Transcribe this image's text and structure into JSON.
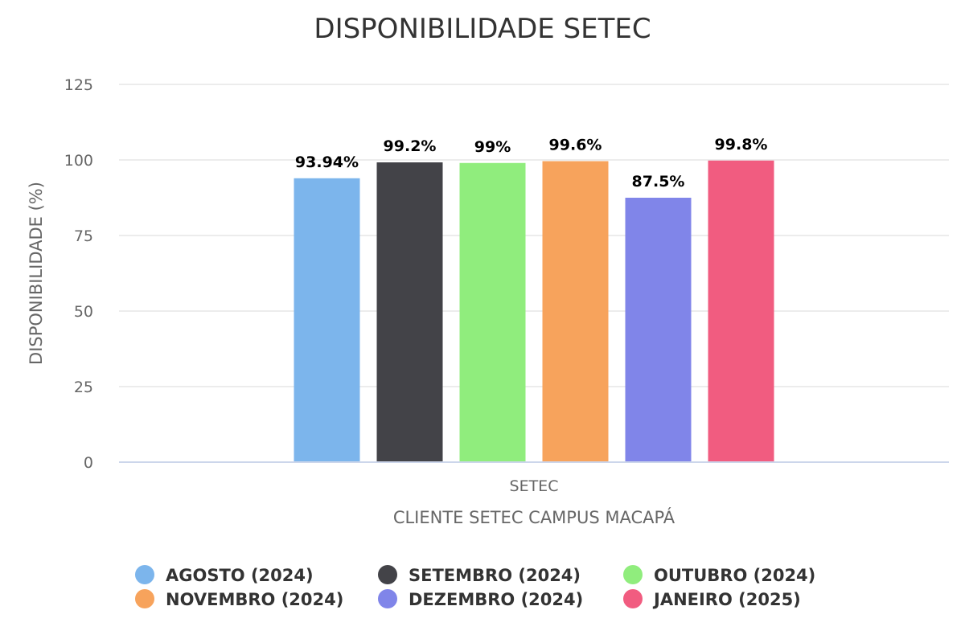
{
  "chart_data": {
    "type": "bar",
    "title": "DISPONIBILIDADE SETEC",
    "xlabel": "CLIENTE SETEC CAMPUS MACAPÁ",
    "ylabel": "DISPONIBILIDADE (%)",
    "categories": [
      "SETEC"
    ],
    "ylim": [
      0,
      125
    ],
    "yticks": [
      0,
      25,
      50,
      75,
      100,
      125
    ],
    "grid": true,
    "legend_position": "bottom",
    "series": [
      {
        "name": "AGOSTO (2024)",
        "values": [
          93.94
        ],
        "label": "93.94%",
        "color": "#7cb5ec"
      },
      {
        "name": "SETEMBRO (2024)",
        "values": [
          99.2
        ],
        "label": "99.2%",
        "color": "#434348"
      },
      {
        "name": "OUTUBRO (2024)",
        "values": [
          99
        ],
        "label": "99%",
        "color": "#90ed7d"
      },
      {
        "name": "NOVEMBRO (2024)",
        "values": [
          99.6
        ],
        "label": "99.6%",
        "color": "#f7a35c"
      },
      {
        "name": "DEZEMBRO (2024)",
        "values": [
          87.5
        ],
        "label": "87.5%",
        "color": "#8085e9"
      },
      {
        "name": "JANEIRO (2025)",
        "values": [
          99.8
        ],
        "label": "99.8%",
        "color": "#f15c80"
      }
    ]
  }
}
